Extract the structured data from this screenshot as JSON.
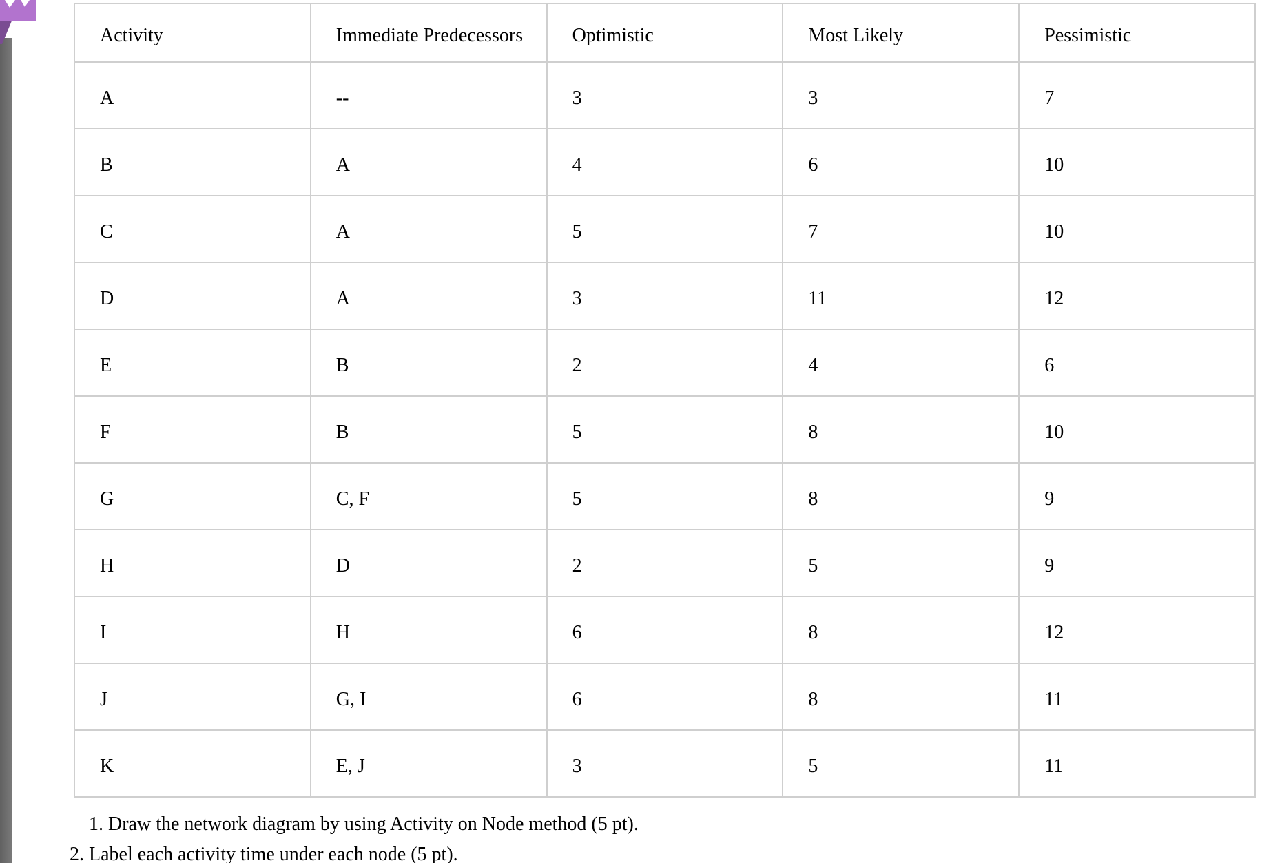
{
  "table": {
    "columns": [
      "Activity",
      "Immediate Predecessors",
      "Optimistic",
      "Most Likely",
      "Pessimistic"
    ],
    "rows": [
      [
        "A",
        "--",
        "3",
        "3",
        "7"
      ],
      [
        "B",
        "A",
        "4",
        "6",
        "10"
      ],
      [
        "C",
        "A",
        "5",
        "7",
        "10"
      ],
      [
        "D",
        "A",
        "3",
        "11",
        "12"
      ],
      [
        "E",
        "B",
        "2",
        "4",
        "6"
      ],
      [
        "F",
        "B",
        "5",
        "8",
        "10"
      ],
      [
        "G",
        "C, F",
        "5",
        "8",
        "9"
      ],
      [
        "H",
        "D",
        "2",
        "5",
        "9"
      ],
      [
        "I",
        "H",
        "6",
        "8",
        "12"
      ],
      [
        "J",
        "G, I",
        "6",
        "8",
        "11"
      ],
      [
        "K",
        "E, J",
        "3",
        "5",
        "11"
      ]
    ]
  },
  "instructions": [
    "1. Draw the network diagram by using Activity on Node method (5 pt).",
    "2. Label each activity time under each node (5 pt)."
  ],
  "decoration": {
    "accent_purple_light": "#b273ce",
    "accent_purple_dark": "#7a4c92",
    "sidebar_gray_1": "#616161",
    "sidebar_gray_2": "#7b7b7b",
    "table_border": "#cfcfcf",
    "text_color": "#000000"
  }
}
